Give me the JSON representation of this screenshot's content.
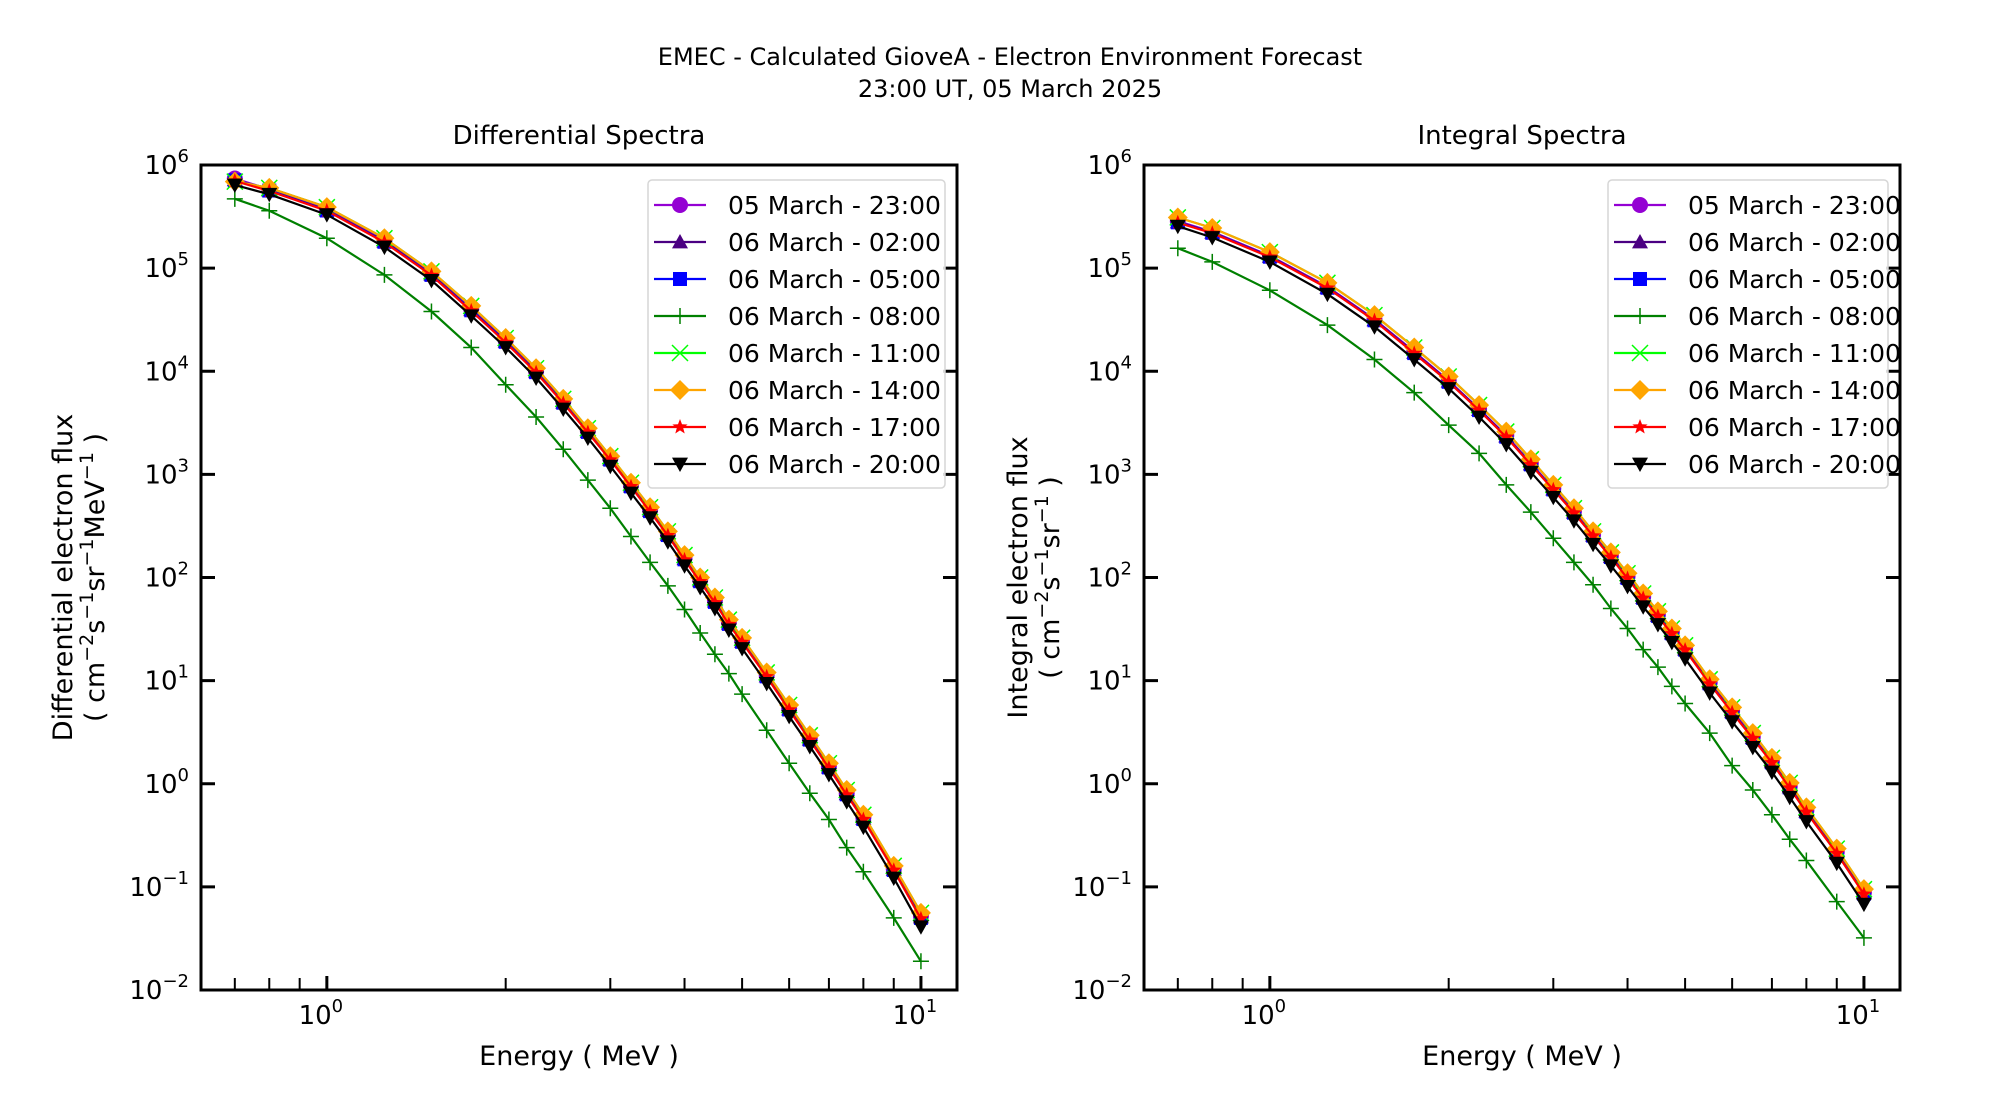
{
  "figure": {
    "title_line1": "EMEC - Calculated GioveA - Electron Environment Forecast",
    "title_line2": "23:00 UT, 05 March 2025"
  },
  "chart_data": [
    {
      "type": "line",
      "title": "Differential Spectra",
      "xlabel": "Energy ( MeV )",
      "ylabel_line1": "Differential electron flux",
      "ylabel_line2_parts": [
        "( cm",
        "−2",
        "s",
        "−1",
        "sr",
        "−1",
        "MeV",
        "−1",
        " )"
      ],
      "xscale": "log",
      "yscale": "log",
      "xlim": [
        0.614,
        11.5
      ],
      "ylim": [
        0.01,
        1000000
      ],
      "x_ticks": [
        {
          "base": "10",
          "exp": "0",
          "value": 1
        },
        {
          "base": "10",
          "exp": "1",
          "value": 10
        }
      ],
      "y_ticks": [
        {
          "base": "10",
          "exp": "−2",
          "value": 0.01
        },
        {
          "base": "10",
          "exp": "−1",
          "value": 0.1
        },
        {
          "base": "10",
          "exp": "0",
          "value": 1
        },
        {
          "base": "10",
          "exp": "1",
          "value": 10
        },
        {
          "base": "10",
          "exp": "2",
          "value": 100
        },
        {
          "base": "10",
          "exp": "3",
          "value": 1000
        },
        {
          "base": "10",
          "exp": "4",
          "value": 10000
        },
        {
          "base": "10",
          "exp": "5",
          "value": 100000
        },
        {
          "base": "10",
          "exp": "6",
          "value": 1000000
        }
      ],
      "grid": false,
      "legend_position": "top-right",
      "x": [
        0.7,
        0.8,
        1.0,
        1.25,
        1.5,
        1.75,
        2.0,
        2.25,
        2.5,
        2.75,
        3.0,
        3.25,
        3.5,
        3.75,
        4.0,
        4.25,
        4.5,
        4.75,
        5.0,
        5.5,
        6.0,
        6.5,
        7.0,
        7.5,
        8.0,
        9.0,
        10.0
      ],
      "series": [
        {
          "name": "05 March - 23:00",
          "color": "#9400D3",
          "marker": "circle",
          "values": [
            740000,
            580000,
            370000,
            185000,
            88000,
            40000,
            19800,
            10000,
            5100,
            2650,
            1420,
            780,
            450,
            265,
            155,
            95,
            60,
            37,
            24.5,
            11.3,
            5.4,
            2.75,
            1.48,
            0.81,
            0.47,
            0.15,
            0.052
          ]
        },
        {
          "name": "06 March - 02:00",
          "color": "#4B0082",
          "marker": "triangle-up",
          "values": [
            720000,
            570000,
            365000,
            182000,
            87000,
            39500,
            19500,
            9900,
            5000,
            2600,
            1400,
            770,
            445,
            260,
            152,
            93,
            59,
            36,
            24,
            11.1,
            5.3,
            2.7,
            1.45,
            0.8,
            0.46,
            0.148,
            0.051
          ]
        },
        {
          "name": "06 March - 05:00",
          "color": "#0000FF",
          "marker": "square",
          "values": [
            710000,
            565000,
            362000,
            180000,
            86000,
            39000,
            19300,
            9800,
            4950,
            2580,
            1390,
            765,
            440,
            258,
            150,
            92,
            58,
            35.5,
            23.8,
            11.0,
            5.25,
            2.68,
            1.44,
            0.79,
            0.455,
            0.146,
            0.05
          ]
        },
        {
          "name": "06 March - 08:00",
          "color": "#008000",
          "marker": "plus",
          "values": [
            470000,
            360000,
            195000,
            86000,
            38000,
            17000,
            7400,
            3600,
            1750,
            880,
            470,
            250,
            140,
            83,
            49,
            29,
            18,
            11.7,
            7.4,
            3.3,
            1.58,
            0.81,
            0.45,
            0.24,
            0.14,
            0.05,
            0.019
          ]
        },
        {
          "name": "06 March - 11:00",
          "color": "#00FF00",
          "marker": "x",
          "values": [
            690000,
            600000,
            390000,
            195000,
            93000,
            43000,
            21000,
            10700,
            5400,
            2800,
            1500,
            830,
            480,
            280,
            165,
            100,
            64,
            39,
            26,
            12,
            5.8,
            2.95,
            1.58,
            0.87,
            0.5,
            0.16,
            0.056
          ]
        },
        {
          "name": "06 March - 14:00",
          "color": "#FFA500",
          "marker": "diamond",
          "values": [
            690000,
            600000,
            390000,
            195000,
            93000,
            43000,
            21000,
            10700,
            5400,
            2800,
            1500,
            830,
            480,
            280,
            165,
            100,
            64,
            39,
            26,
            12,
            5.8,
            2.95,
            1.58,
            0.87,
            0.5,
            0.16,
            0.056
          ]
        },
        {
          "name": "06 March - 17:00",
          "color": "#FF0000",
          "marker": "star",
          "values": [
            700000,
            560000,
            360000,
            178000,
            85000,
            38500,
            19000,
            9700,
            4900,
            2550,
            1380,
            760,
            435,
            255,
            148,
            91,
            57,
            35,
            23.5,
            10.9,
            5.2,
            2.65,
            1.42,
            0.78,
            0.45,
            0.145,
            0.049
          ]
        },
        {
          "name": "06 March - 20:00",
          "color": "#000000",
          "marker": "triangle-down",
          "values": [
            640000,
            520000,
            330000,
            160000,
            76000,
            34500,
            17000,
            8600,
            4300,
            2250,
            1200,
            660,
            380,
            222,
            130,
            80,
            50,
            31,
            20.5,
            9.4,
            4.5,
            2.3,
            1.23,
            0.67,
            0.38,
            0.122,
            0.041
          ]
        }
      ]
    },
    {
      "type": "line",
      "title": "Integral Spectra",
      "xlabel": "Energy ( MeV )",
      "ylabel_line1": "Integral electron flux",
      "ylabel_line2_parts": [
        "( cm",
        "−2",
        "s",
        "−1",
        "sr",
        "−1",
        "",
        "",
        " )"
      ],
      "xscale": "log",
      "yscale": "log",
      "xlim": [
        0.614,
        11.5
      ],
      "ylim": [
        0.01,
        1000000
      ],
      "x_ticks": [
        {
          "base": "10",
          "exp": "0",
          "value": 1
        },
        {
          "base": "10",
          "exp": "1",
          "value": 10
        }
      ],
      "y_ticks": [
        {
          "base": "10",
          "exp": "−2",
          "value": 0.01
        },
        {
          "base": "10",
          "exp": "−1",
          "value": 0.1
        },
        {
          "base": "10",
          "exp": "0",
          "value": 1
        },
        {
          "base": "10",
          "exp": "1",
          "value": 10
        },
        {
          "base": "10",
          "exp": "2",
          "value": 100
        },
        {
          "base": "10",
          "exp": "3",
          "value": 1000
        },
        {
          "base": "10",
          "exp": "4",
          "value": 10000
        },
        {
          "base": "10",
          "exp": "5",
          "value": 100000
        },
        {
          "base": "10",
          "exp": "6",
          "value": 1000000
        }
      ],
      "grid": false,
      "legend_position": "top-right",
      "x": [
        0.7,
        0.8,
        1.0,
        1.25,
        1.5,
        1.75,
        2.0,
        2.25,
        2.5,
        2.75,
        3.0,
        3.25,
        3.5,
        3.75,
        4.0,
        4.25,
        4.5,
        4.75,
        5.0,
        5.5,
        6.0,
        6.5,
        7.0,
        7.5,
        8.0,
        9.0,
        10.0
      ],
      "series": [
        {
          "name": "05 March - 23:00",
          "color": "#9400D3",
          "marker": "circle",
          "values": [
            285000,
            225000,
            132000,
            66000,
            32000,
            15500,
            8100,
            4300,
            2380,
            1280,
            730,
            435,
            260,
            162,
            102,
            65,
            43.5,
            29.5,
            20.5,
            9.6,
            5.1,
            2.85,
            1.65,
            0.94,
            0.55,
            0.218,
            0.088
          ]
        },
        {
          "name": "06 March - 02:00",
          "color": "#4B0082",
          "marker": "triangle-up",
          "values": [
            280000,
            222000,
            130000,
            65000,
            31500,
            15200,
            8000,
            4250,
            2350,
            1260,
            720,
            430,
            257,
            160,
            100,
            64,
            43,
            29,
            20.2,
            9.5,
            5.0,
            2.8,
            1.63,
            0.93,
            0.54,
            0.215,
            0.087
          ]
        },
        {
          "name": "06 March - 05:00",
          "color": "#0000FF",
          "marker": "square",
          "values": [
            278000,
            220000,
            129000,
            64500,
            31200,
            15000,
            7900,
            4200,
            2320,
            1250,
            715,
            425,
            255,
            158,
            99,
            63.5,
            42.5,
            28.8,
            20,
            9.4,
            4.95,
            2.78,
            1.61,
            0.92,
            0.535,
            0.213,
            0.086
          ]
        },
        {
          "name": "06 March - 08:00",
          "color": "#008000",
          "marker": "plus",
          "values": [
            156000,
            115000,
            61000,
            28000,
            13000,
            6200,
            3000,
            1600,
            790,
            430,
            240,
            140,
            85,
            50,
            32,
            20,
            13.5,
            8.8,
            6.0,
            3.1,
            1.5,
            0.87,
            0.5,
            0.29,
            0.18,
            0.072,
            0.032
          ]
        },
        {
          "name": "06 March - 11:00",
          "color": "#00FF00",
          "marker": "x",
          "values": [
            310000,
            245000,
            143000,
            72000,
            35000,
            17000,
            8900,
            4700,
            2600,
            1400,
            790,
            470,
            280,
            175,
            110,
            70,
            47,
            32,
            22,
            10.3,
            5.5,
            3.1,
            1.78,
            1.02,
            0.59,
            0.235,
            0.095
          ]
        },
        {
          "name": "06 March - 14:00",
          "color": "#FFA500",
          "marker": "diamond",
          "values": [
            310000,
            245000,
            143000,
            72000,
            35000,
            17000,
            8900,
            4700,
            2600,
            1400,
            790,
            470,
            280,
            175,
            110,
            70,
            47,
            32,
            22,
            10.3,
            5.5,
            3.1,
            1.78,
            1.02,
            0.59,
            0.235,
            0.095
          ]
        },
        {
          "name": "06 March - 17:00",
          "color": "#FF0000",
          "marker": "star",
          "values": [
            276000,
            218000,
            128000,
            64000,
            31000,
            14900,
            7850,
            4180,
            2300,
            1240,
            710,
            422,
            253,
            157,
            98,
            63,
            42,
            28.5,
            19.8,
            9.3,
            4.9,
            2.75,
            1.6,
            0.91,
            0.53,
            0.211,
            0.085
          ]
        },
        {
          "name": "06 March - 20:00",
          "color": "#000000",
          "marker": "triangle-down",
          "values": [
            255000,
            198000,
            115000,
            56000,
            27000,
            13000,
            6800,
            3600,
            1950,
            1050,
            600,
            355,
            210,
            130,
            82,
            52,
            35,
            23.5,
            16.3,
            7.6,
            4.0,
            2.25,
            1.3,
            0.74,
            0.43,
            0.17,
            0.068
          ]
        }
      ]
    }
  ]
}
